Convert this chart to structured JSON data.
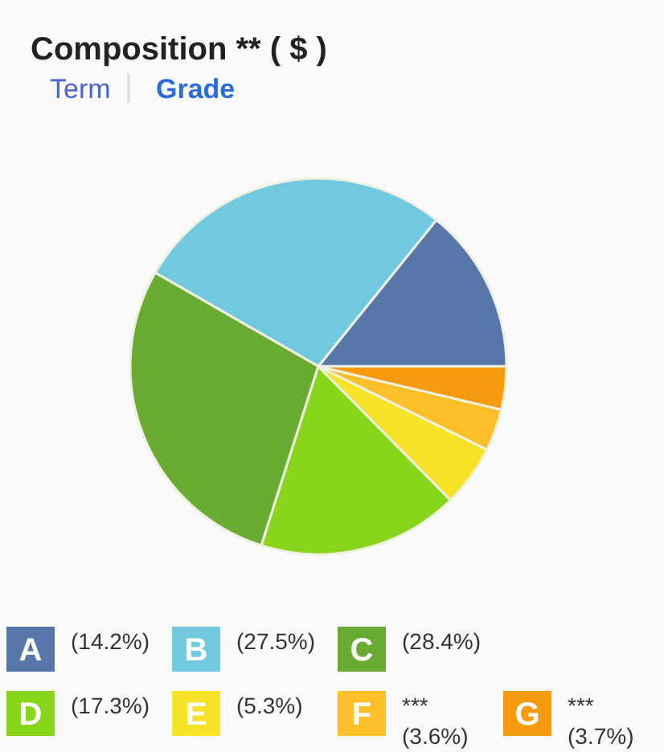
{
  "chart_data": {
    "type": "pie",
    "title": "Composition ** ( $ )",
    "annotations": [
      "Term",
      "Grade"
    ],
    "categories": [
      "A",
      "B",
      "C",
      "D",
      "E",
      "F",
      "G"
    ],
    "values": [
      14.2,
      27.5,
      28.4,
      17.3,
      5.3,
      3.6,
      3.7
    ],
    "value_labels": [
      "(14.2%)",
      "(27.5%)",
      "(28.4%)",
      "(17.3%)",
      "(5.3%)",
      "*** (3.6%)",
      "*** (3.7%)"
    ],
    "colors": [
      "#5877a9",
      "#70c9df",
      "#6aab33",
      "#88d51c",
      "#f6e226",
      "#fbbf2a",
      "#f99b0e"
    ],
    "legend": "bottom"
  }
}
